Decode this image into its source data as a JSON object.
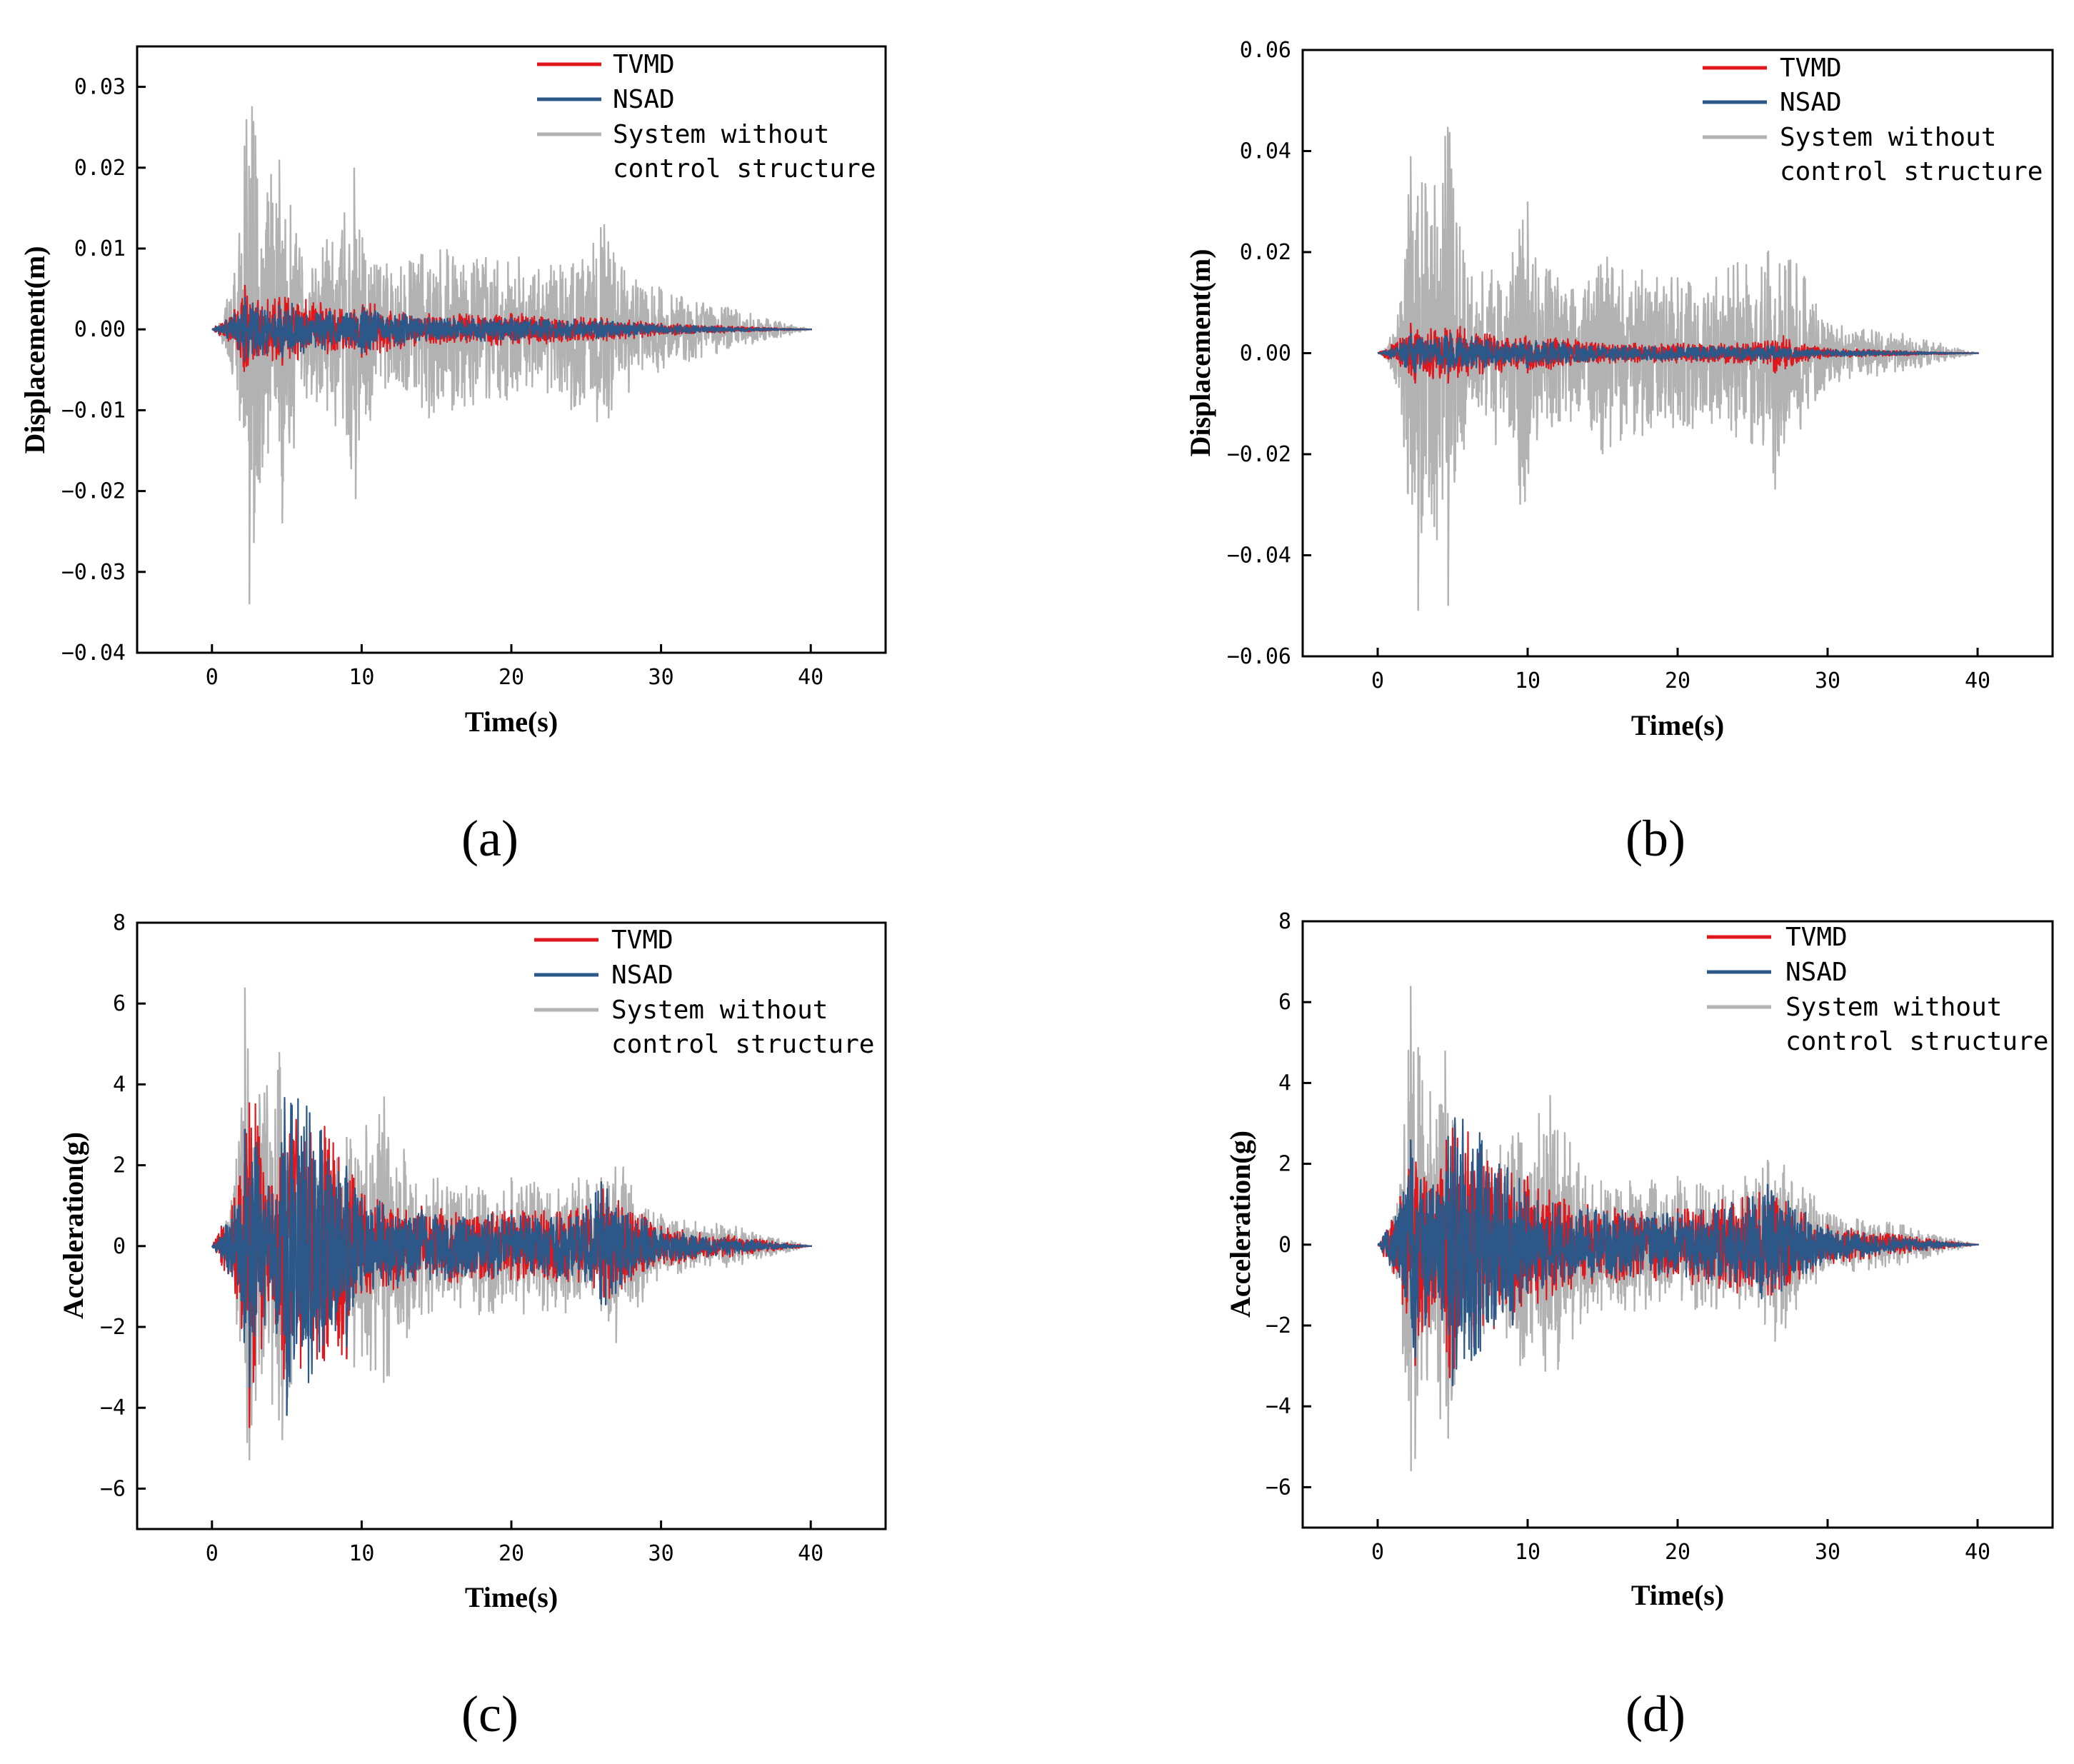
{
  "colors": {
    "tvmd": "#e0171c",
    "nsad": "#2b5888",
    "uncontrolled": "#b2b2b2",
    "axis": "#000000"
  },
  "chart_data": [
    {
      "id": "a",
      "type": "line",
      "caption": "(a)",
      "xlabel": "Time(s)",
      "ylabel": "Displacement(m)",
      "xlim": [
        -5,
        45
      ],
      "ylim": [
        -0.04,
        0.035
      ],
      "xticks": [
        0,
        10,
        20,
        30,
        40
      ],
      "xtick_labels": [
        "0",
        "10",
        "20",
        "30",
        "40"
      ],
      "yticks": [
        -0.04,
        -0.03,
        -0.02,
        -0.01,
        0.0,
        0.01,
        0.02,
        0.03
      ],
      "ytick_labels": [
        "−0.04",
        "−0.03",
        "−0.02",
        "−0.01",
        "0.00",
        "0.01",
        "0.02",
        "0.03"
      ],
      "legend": [
        "TVMD",
        "NSAD",
        "System without",
        "control structure"
      ],
      "legend_position": "top-right",
      "series": [
        {
          "name": "System without control structure",
          "key": "uncontrolled",
          "peaks": [
            [
              0.5,
              0.0008
            ],
            [
              1.5,
              0.007
            ],
            [
              2.3,
              0.026
            ],
            [
              2.5,
              -0.034
            ],
            [
              2.9,
              0.024
            ],
            [
              3.2,
              -0.019
            ],
            [
              4.5,
              0.021
            ],
            [
              4.7,
              -0.024
            ],
            [
              6.0,
              0.009
            ],
            [
              7.0,
              -0.009
            ],
            [
              9.5,
              0.02
            ],
            [
              9.6,
              -0.021
            ],
            [
              11.0,
              0.008
            ],
            [
              14.5,
              -0.011
            ],
            [
              20.5,
              0.009
            ],
            [
              21.0,
              -0.007
            ],
            [
              24.0,
              -0.01
            ],
            [
              26.2,
              0.013
            ],
            [
              26.5,
              -0.011
            ],
            [
              30.0,
              0.005
            ],
            [
              35.0,
              0.0025
            ],
            [
              40.0,
              0.0
            ]
          ]
        },
        {
          "name": "TVMD",
          "key": "tvmd",
          "peaks": [
            [
              1.5,
              0.0025
            ],
            [
              2.2,
              0.0055
            ],
            [
              2.4,
              -0.0045
            ],
            [
              4.5,
              0.004
            ],
            [
              4.7,
              -0.0045
            ],
            [
              9.5,
              0.0025
            ],
            [
              10.0,
              -0.0035
            ],
            [
              14.5,
              0.002
            ],
            [
              20.0,
              0.002
            ],
            [
              26.0,
              0.0015
            ],
            [
              30.0,
              0.0008
            ],
            [
              40.0,
              0.0
            ]
          ]
        },
        {
          "name": "NSAD",
          "key": "nsad",
          "peaks": [
            [
              1.5,
              0.002
            ],
            [
              2.2,
              0.004
            ],
            [
              2.4,
              -0.0035
            ],
            [
              4.5,
              0.003
            ],
            [
              4.7,
              -0.0035
            ],
            [
              9.5,
              0.002
            ],
            [
              10.0,
              -0.003
            ],
            [
              14.5,
              0.0015
            ],
            [
              20.0,
              0.0015
            ],
            [
              26.0,
              0.0012
            ],
            [
              30.0,
              0.0006
            ],
            [
              40.0,
              0.0
            ]
          ]
        }
      ]
    },
    {
      "id": "b",
      "type": "line",
      "caption": "(b)",
      "xlabel": "Time(s)",
      "ylabel": "Displacement(m)",
      "xlim": [
        -5,
        45
      ],
      "ylim": [
        -0.06,
        0.06
      ],
      "xticks": [
        0,
        10,
        20,
        30,
        40
      ],
      "xtick_labels": [
        "0",
        "10",
        "20",
        "30",
        "40"
      ],
      "yticks": [
        -0.06,
        -0.04,
        -0.02,
        0.0,
        0.02,
        0.04,
        0.06
      ],
      "ytick_labels": [
        "−0.06",
        "−0.04",
        "−0.02",
        "0.00",
        "0.02",
        "0.04",
        "0.06"
      ],
      "legend": [
        "TVMD",
        "NSAD",
        "System without",
        "control structure"
      ],
      "legend_position": "top-right",
      "series": [
        {
          "name": "System without control structure",
          "key": "uncontrolled",
          "peaks": [
            [
              0.5,
              0.001
            ],
            [
              1.5,
              0.01
            ],
            [
              2.2,
              0.039
            ],
            [
              2.7,
              -0.051
            ],
            [
              3.2,
              0.033
            ],
            [
              4.5,
              0.043
            ],
            [
              4.7,
              -0.05
            ],
            [
              6.0,
              0.015
            ],
            [
              9.0,
              0.02
            ],
            [
              9.5,
              -0.03
            ],
            [
              10.0,
              0.03
            ],
            [
              12.0,
              0.015
            ],
            [
              15.0,
              -0.02
            ],
            [
              20.0,
              0.015
            ],
            [
              21.0,
              -0.015
            ],
            [
              24.0,
              0.018
            ],
            [
              26.0,
              0.02
            ],
            [
              26.5,
              -0.027
            ],
            [
              30.0,
              0.006
            ],
            [
              35.0,
              0.004
            ],
            [
              40.0,
              0.0
            ]
          ]
        },
        {
          "name": "TVMD",
          "key": "tvmd",
          "peaks": [
            [
              1.5,
              0.003
            ],
            [
              2.2,
              0.006
            ],
            [
              2.5,
              -0.006
            ],
            [
              4.5,
              0.005
            ],
            [
              4.7,
              -0.006
            ],
            [
              9.5,
              0.003
            ],
            [
              10.0,
              -0.004
            ],
            [
              15.0,
              0.002
            ],
            [
              20.0,
              0.002
            ],
            [
              26.0,
              0.0025
            ],
            [
              26.5,
              -0.004
            ],
            [
              30.0,
              0.001
            ],
            [
              40.0,
              0.0
            ]
          ]
        },
        {
          "name": "NSAD",
          "key": "nsad",
          "peaks": [
            [
              1.5,
              0.002
            ],
            [
              2.2,
              0.004
            ],
            [
              2.5,
              -0.004
            ],
            [
              4.5,
              0.0035
            ],
            [
              4.7,
              -0.004
            ],
            [
              9.5,
              0.002
            ],
            [
              10.0,
              -0.003
            ],
            [
              15.0,
              0.0015
            ],
            [
              20.0,
              0.0015
            ],
            [
              26.0,
              0.0015
            ],
            [
              30.0,
              0.0008
            ],
            [
              40.0,
              0.0
            ]
          ]
        }
      ]
    },
    {
      "id": "c",
      "type": "line",
      "caption": "(c)",
      "xlabel": "Time(s)",
      "ylabel": "Acceleration(g)",
      "xlim": [
        -5,
        45
      ],
      "ylim": [
        -7,
        8
      ],
      "xticks": [
        0,
        10,
        20,
        30,
        40
      ],
      "xtick_labels": [
        "0",
        "10",
        "20",
        "30",
        "40"
      ],
      "yticks": [
        -6,
        -4,
        -2,
        0,
        2,
        4,
        6,
        8
      ],
      "ytick_labels": [
        "−6",
        "−4",
        "−2",
        "0",
        "2",
        "4",
        "6",
        "8"
      ],
      "legend": [
        "TVMD",
        "NSAD",
        "System without",
        "control structure"
      ],
      "legend_position": "top-right",
      "series": [
        {
          "name": "System without control structure",
          "key": "uncontrolled",
          "peaks": [
            [
              0.5,
              0.1
            ],
            [
              1.5,
              1.5
            ],
            [
              2.2,
              6.4
            ],
            [
              2.5,
              -5.3
            ],
            [
              3.5,
              3.8
            ],
            [
              4.5,
              4.8
            ],
            [
              4.7,
              -4.8
            ],
            [
              6.0,
              2.2
            ],
            [
              9.0,
              2.7
            ],
            [
              9.5,
              -3.0
            ],
            [
              11.5,
              3.7
            ],
            [
              14.0,
              -1.7
            ],
            [
              20.0,
              1.7
            ],
            [
              24.5,
              1.7
            ],
            [
              26.0,
              1.7
            ],
            [
              27.0,
              -2.4
            ],
            [
              30.0,
              0.8
            ],
            [
              35.0,
              0.5
            ],
            [
              40.0,
              0.0
            ]
          ]
        },
        {
          "name": "TVMD",
          "key": "tvmd",
          "peaks": [
            [
              1.5,
              1.2
            ],
            [
              2.2,
              2.9
            ],
            [
              2.5,
              -4.5
            ],
            [
              4.0,
              1.5
            ],
            [
              4.8,
              -3.3
            ],
            [
              9.0,
              -2.8
            ],
            [
              10.0,
              1.3
            ],
            [
              14.0,
              1.0
            ],
            [
              20.0,
              0.9
            ],
            [
              25.0,
              1.0
            ],
            [
              26.0,
              1.5
            ],
            [
              30.0,
              0.5
            ],
            [
              40.0,
              0.0
            ]
          ]
        },
        {
          "name": "NSAD",
          "key": "nsad",
          "peaks": [
            [
              1.5,
              1.0
            ],
            [
              2.2,
              2.9
            ],
            [
              2.5,
              -3.5
            ],
            [
              4.0,
              1.3
            ],
            [
              5.0,
              -4.2
            ],
            [
              9.0,
              -2.5
            ],
            [
              10.0,
              1.2
            ],
            [
              14.0,
              0.9
            ],
            [
              20.0,
              0.8
            ],
            [
              25.0,
              0.9
            ],
            [
              26.0,
              1.6
            ],
            [
              30.0,
              0.4
            ],
            [
              40.0,
              0.0
            ]
          ]
        }
      ]
    },
    {
      "id": "d",
      "type": "line",
      "caption": "(d)",
      "xlabel": "Time(s)",
      "ylabel": "Acceleration(g)",
      "xlim": [
        -5,
        45
      ],
      "ylim": [
        -7,
        8
      ],
      "xticks": [
        0,
        10,
        20,
        30,
        40
      ],
      "xtick_labels": [
        "0",
        "10",
        "20",
        "30",
        "40"
      ],
      "yticks": [
        -6,
        -4,
        -2,
        0,
        2,
        4,
        6,
        8
      ],
      "ytick_labels": [
        "−6",
        "−4",
        "−2",
        "0",
        "2",
        "4",
        "6",
        "8"
      ],
      "legend": [
        "TVMD",
        "NSAD",
        "System without",
        "control structure"
      ],
      "legend_position": "top-right",
      "series": [
        {
          "name": "System without control structure",
          "key": "uncontrolled",
          "peaks": [
            [
              0.5,
              0.1
            ],
            [
              1.5,
              1.5
            ],
            [
              2.2,
              6.4
            ],
            [
              2.5,
              -5.3
            ],
            [
              3.5,
              3.8
            ],
            [
              4.5,
              4.8
            ],
            [
              4.7,
              -4.8
            ],
            [
              6.0,
              2.2
            ],
            [
              9.0,
              2.7
            ],
            [
              9.5,
              -3.0
            ],
            [
              11.5,
              3.7
            ],
            [
              14.0,
              -1.7
            ],
            [
              20.0,
              1.7
            ],
            [
              24.5,
              1.7
            ],
            [
              26.0,
              2.1
            ],
            [
              26.5,
              -2.4
            ],
            [
              30.0,
              0.8
            ],
            [
              35.0,
              0.5
            ],
            [
              40.0,
              0.0
            ]
          ]
        },
        {
          "name": "TVMD",
          "key": "tvmd",
          "peaks": [
            [
              1.5,
              1.2
            ],
            [
              2.2,
              2.6
            ],
            [
              2.5,
              -3.0
            ],
            [
              4.0,
              1.5
            ],
            [
              4.8,
              -3.3
            ],
            [
              9.0,
              -2.0
            ],
            [
              10.0,
              1.7
            ],
            [
              14.0,
              1.0
            ],
            [
              20.0,
              0.9
            ],
            [
              21.0,
              -1.0
            ],
            [
              26.0,
              1.4
            ],
            [
              30.0,
              0.5
            ],
            [
              40.0,
              0.0
            ]
          ]
        },
        {
          "name": "NSAD",
          "key": "nsad",
          "peaks": [
            [
              1.5,
              1.0
            ],
            [
              2.2,
              2.6
            ],
            [
              2.5,
              -2.8
            ],
            [
              4.0,
              1.3
            ],
            [
              5.0,
              -3.5
            ],
            [
              9.0,
              -2.0
            ],
            [
              10.0,
              1.2
            ],
            [
              14.0,
              0.9
            ],
            [
              20.0,
              0.8
            ],
            [
              25.0,
              1.2
            ],
            [
              26.0,
              1.5
            ],
            [
              30.0,
              0.4
            ],
            [
              40.0,
              0.0
            ]
          ]
        }
      ]
    }
  ]
}
